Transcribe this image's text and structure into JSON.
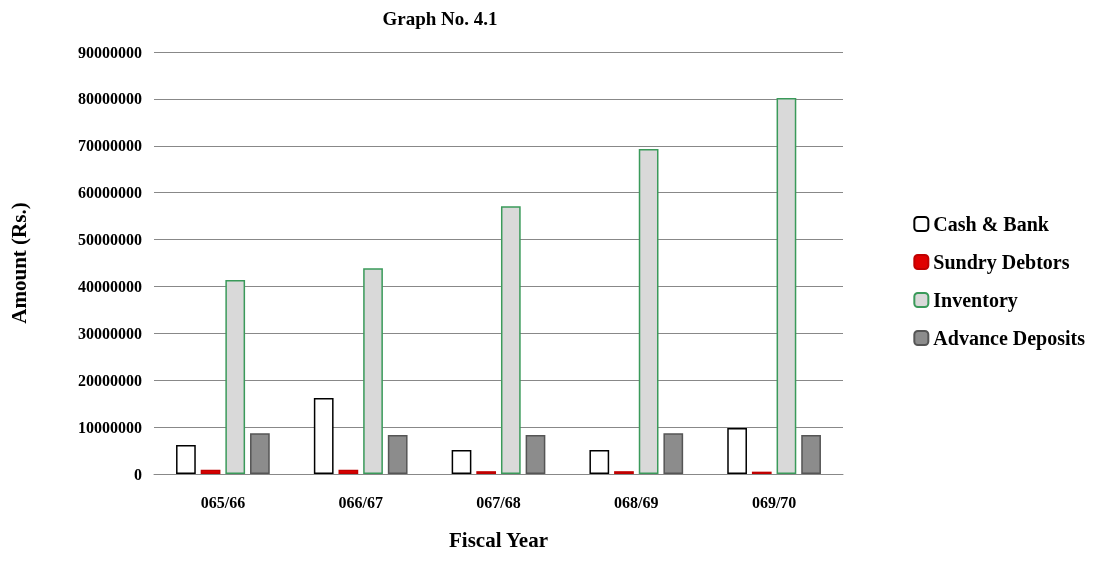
{
  "chart_data": {
    "type": "bar",
    "title": "Graph No. 4.1",
    "xlabel": "Fiscal Year",
    "ylabel": "Amount (Rs.)",
    "categories": [
      "065/66",
      "066/67",
      "067/68",
      "068/69",
      "069/70"
    ],
    "series": [
      {
        "name": "Cash & Bank",
        "color": "#ffffff",
        "values": [
          6200000,
          16200000,
          5100000,
          5100000,
          9800000
        ]
      },
      {
        "name": "Sundry Debtors",
        "color": "#e00000",
        "values": [
          900000,
          900000,
          600000,
          600000,
          500000
        ]
      },
      {
        "name": "Inventory",
        "color": "#d9d9d9",
        "values": [
          41400000,
          43900000,
          57100000,
          69300000,
          80200000
        ]
      },
      {
        "name": "Advance Deposits",
        "color": "#8c8c8c",
        "values": [
          8700000,
          8300000,
          8300000,
          8700000,
          8300000
        ]
      }
    ],
    "ylim": [
      0,
      90000000
    ],
    "yticks": [
      0,
      10000000,
      20000000,
      30000000,
      40000000,
      50000000,
      60000000,
      70000000,
      80000000,
      90000000
    ],
    "grid": "y",
    "legend": "right"
  }
}
